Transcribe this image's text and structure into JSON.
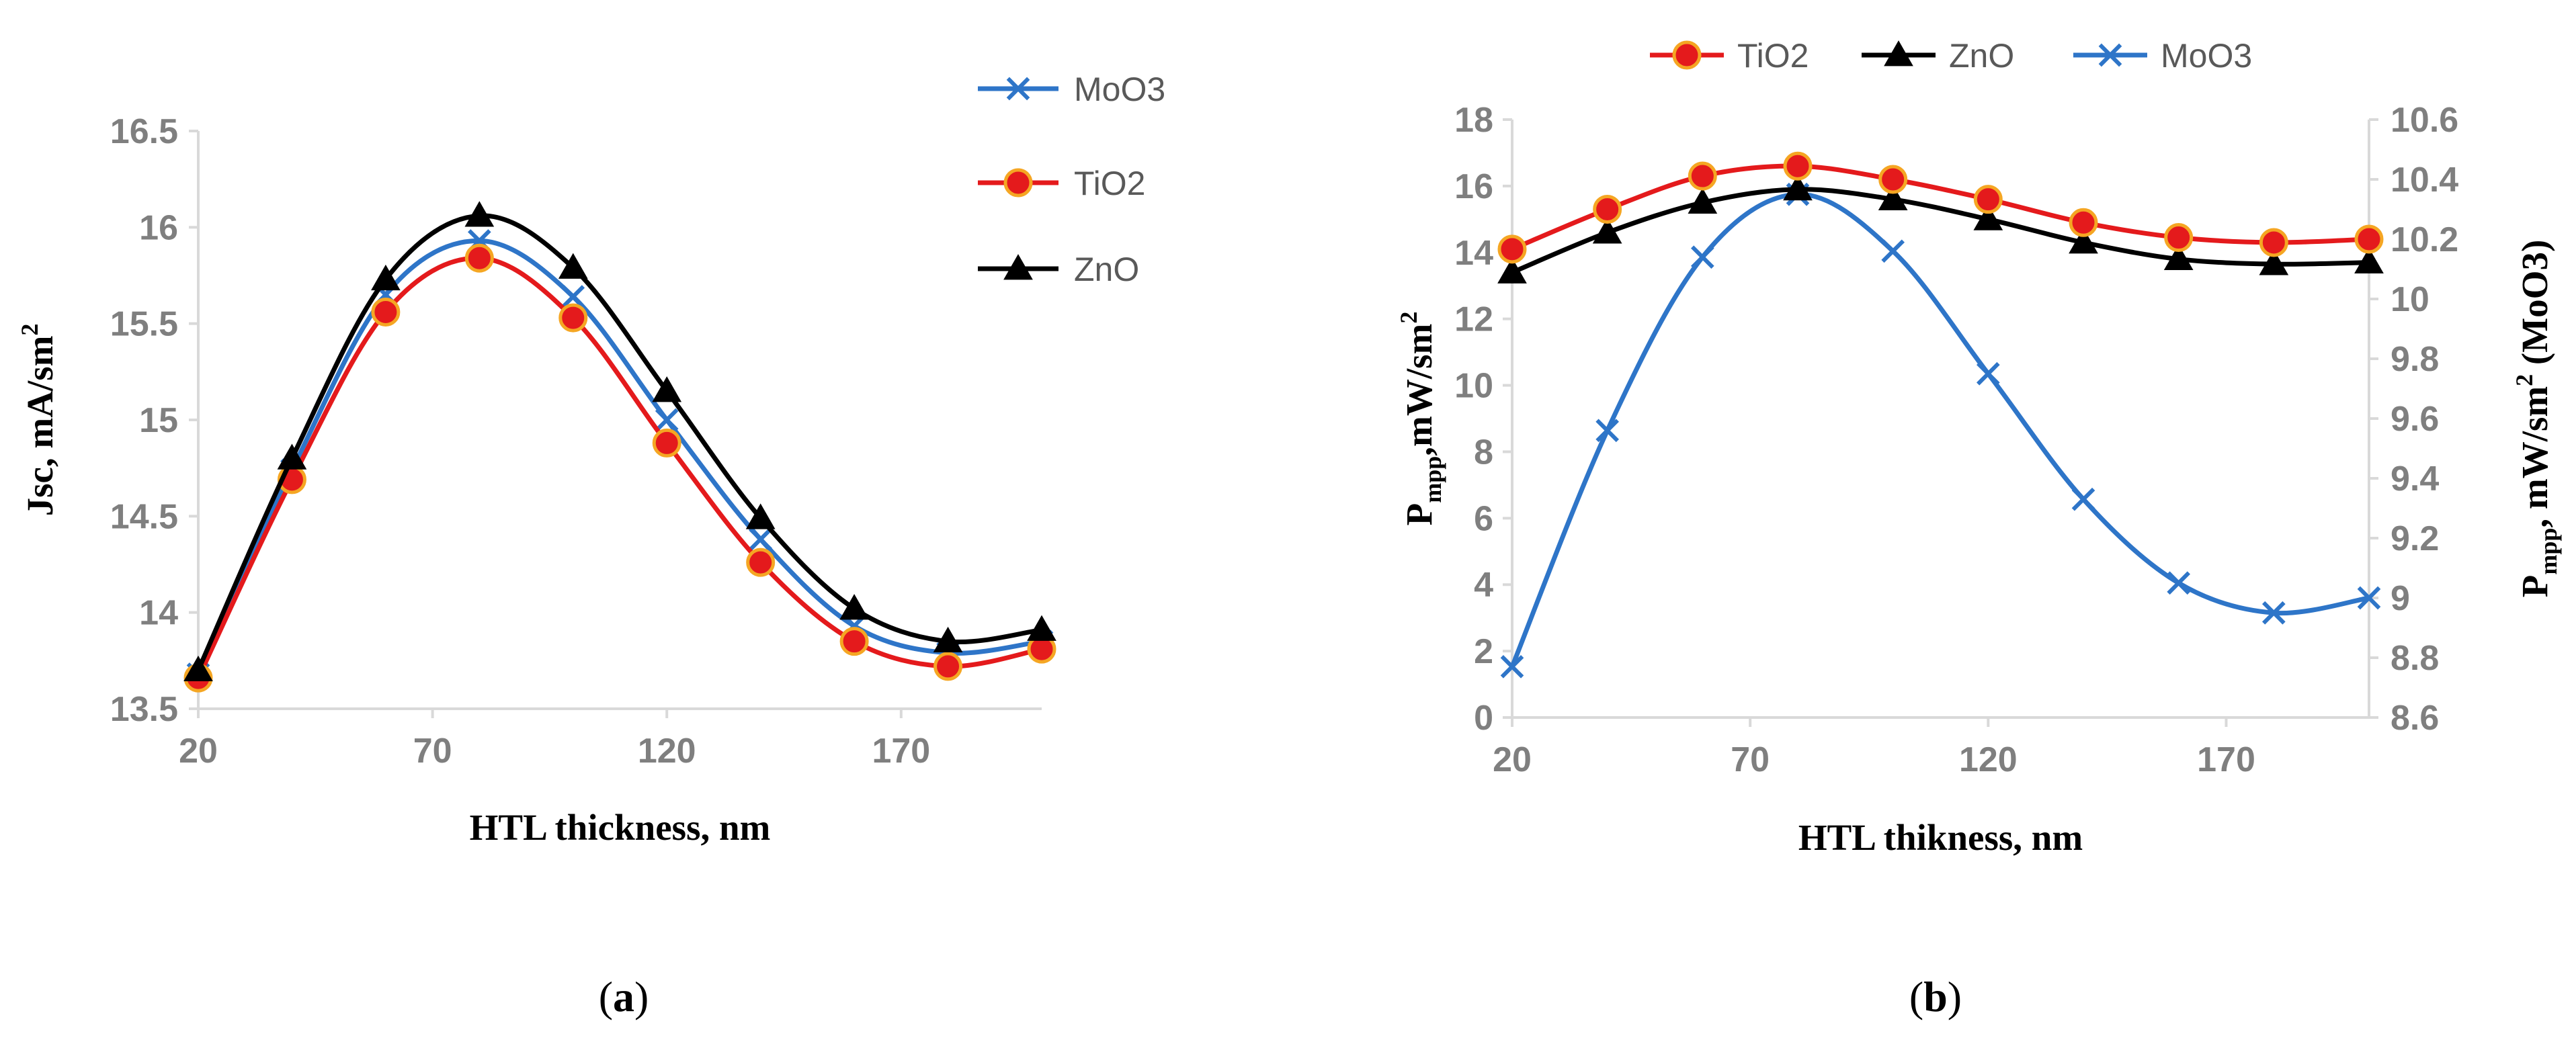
{
  "colors": {
    "MoO3": "#2e75c8",
    "TiO2": "#e41a1c",
    "ZnO": "#000000",
    "TiO2_marker_edge": "#f5a623",
    "axis": "#d9d9d9",
    "tick_text": "#7f7f7f"
  },
  "chart_data": [
    {
      "type": "line",
      "panel": "a",
      "xlabel": "HTL thickness, nm",
      "ylabel": "Jsc, mA/sm",
      "ylabel_sup": "2",
      "xlim": [
        20,
        200
      ],
      "ylim": [
        13.5,
        16.5
      ],
      "xticks": [
        20,
        70,
        120,
        170
      ],
      "xtick_labels": [
        "20",
        "70",
        "120",
        "170"
      ],
      "yticks": [
        13.5,
        14,
        14.5,
        15,
        15.5,
        16,
        16.5
      ],
      "ytick_labels": [
        "13.5",
        "14",
        "14.5",
        "15",
        "15.5",
        "16",
        "16.5"
      ],
      "legend_position": "top-right",
      "legend_order": [
        "MoO3",
        "TiO2",
        "ZnO"
      ],
      "x": [
        20,
        40,
        60,
        80,
        100,
        120,
        140,
        160,
        180,
        200
      ],
      "series": [
        {
          "name": "MoO3",
          "marker": "x",
          "values": [
            13.68,
            14.74,
            15.65,
            15.93,
            15.64,
            15.0,
            14.38,
            13.93,
            13.79,
            13.85
          ]
        },
        {
          "name": "TiO2",
          "marker": "circle",
          "values": [
            13.66,
            14.69,
            15.56,
            15.84,
            15.53,
            14.88,
            14.26,
            13.85,
            13.72,
            13.81
          ]
        },
        {
          "name": "ZnO",
          "marker": "triangle",
          "values": [
            13.7,
            14.8,
            15.73,
            16.06,
            15.79,
            15.15,
            14.49,
            14.02,
            13.85,
            13.91
          ]
        }
      ]
    },
    {
      "type": "line",
      "panel": "b",
      "xlabel": "HTL thikness, nm",
      "ylabel_main": "P",
      "ylabel_sub": "mpp",
      "ylabel_rest": ",mW/sm",
      "ylabel_sup": "2",
      "y2label_main": "P",
      "y2label_sub": "mpp",
      "y2label_rest": ", mW/sm",
      "y2label_sup": "2",
      "y2label_tail": " (MoO3)",
      "xlim": [
        20,
        200
      ],
      "ylim": [
        0,
        18
      ],
      "y2lim": [
        8.6,
        10.6
      ],
      "xticks": [
        20,
        70,
        120,
        170
      ],
      "xtick_labels": [
        "20",
        "70",
        "120",
        "170"
      ],
      "yticks": [
        0,
        2,
        4,
        6,
        8,
        10,
        12,
        14,
        16,
        18
      ],
      "ytick_labels": [
        "0",
        "2",
        "4",
        "6",
        "8",
        "10",
        "12",
        "14",
        "16",
        "18"
      ],
      "y2ticks": [
        8.6,
        8.8,
        9.0,
        9.2,
        9.4,
        9.6,
        9.8,
        10.0,
        10.2,
        10.4,
        10.6
      ],
      "y2tick_labels": [
        "8.6",
        "8.8",
        "9",
        "9.2",
        "9.4",
        "9.6",
        "9.8",
        "10",
        "10.2",
        "10.4",
        "10.6"
      ],
      "legend_position": "top",
      "legend_order": [
        "TiO2",
        "ZnO",
        "MoO3"
      ],
      "x": [
        20,
        40,
        60,
        80,
        100,
        120,
        140,
        160,
        180,
        200
      ],
      "series": [
        {
          "name": "TiO2",
          "marker": "circle",
          "axis": "left",
          "values": [
            14.1,
            15.3,
            16.3,
            16.6,
            16.2,
            15.6,
            14.9,
            14.45,
            14.3,
            14.4
          ]
        },
        {
          "name": "ZnO",
          "marker": "triangle",
          "axis": "left",
          "values": [
            13.4,
            14.6,
            15.5,
            15.9,
            15.6,
            15.0,
            14.3,
            13.8,
            13.65,
            13.7
          ]
        },
        {
          "name": "MoO3",
          "marker": "x",
          "axis": "right",
          "values": [
            8.77,
            9.56,
            10.14,
            10.35,
            10.16,
            9.75,
            9.33,
            9.05,
            8.95,
            9.0
          ]
        }
      ]
    }
  ],
  "panels": {
    "a": {
      "label": "a"
    },
    "b": {
      "label": "b"
    }
  }
}
